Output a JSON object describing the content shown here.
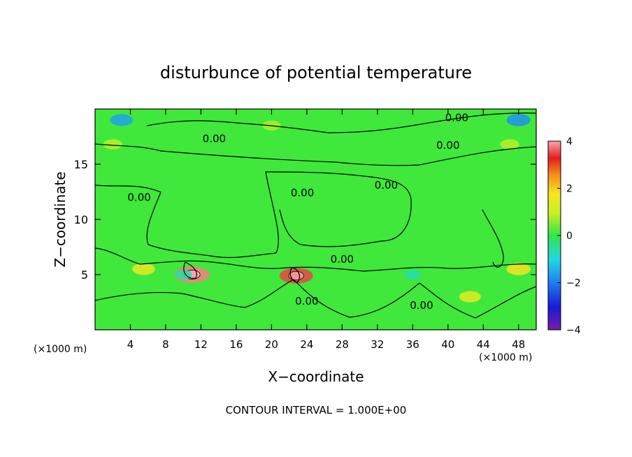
{
  "chart_data": {
    "type": "heatmap",
    "title": "disturbunce of potential temperature",
    "xlabel": "X−coordinate",
    "ylabel": "Z−coordinate",
    "x_unit": "(×1000 m)",
    "x_unit_right": "(×1000 m)",
    "footer": "CONTOUR INTERVAL = 1.000E+00",
    "xlim": [
      0,
      50
    ],
    "ylim": [
      0,
      20
    ],
    "x_ticks": [
      4,
      8,
      12,
      16,
      20,
      24,
      28,
      32,
      36,
      40,
      44,
      48
    ],
    "y_ticks": [
      5,
      10,
      15
    ],
    "colorbar": {
      "min": -4,
      "max": 4,
      "ticks": [
        -4,
        -2,
        0,
        2,
        4
      ]
    },
    "contour_labels": [
      {
        "text": "0.00",
        "x": 13.5,
        "y": 17.3
      },
      {
        "text": "0.00",
        "x": 41.0,
        "y": 19.2
      },
      {
        "text": "0.00",
        "x": 40.0,
        "y": 16.7
      },
      {
        "text": "0.00",
        "x": 33.0,
        "y": 13.1
      },
      {
        "text": "0.00",
        "x": 23.5,
        "y": 12.4
      },
      {
        "text": "0.00",
        "x": 5.0,
        "y": 12.0
      },
      {
        "text": "0.00",
        "x": 28.0,
        "y": 6.4
      },
      {
        "text": "0.00",
        "x": 24.0,
        "y": 2.6
      },
      {
        "text": "0.00",
        "x": 37.0,
        "y": 2.2
      }
    ],
    "features": [
      {
        "x": 11.0,
        "y": 5.0,
        "value": 3.8
      },
      {
        "x": 22.8,
        "y": 4.9,
        "value": 3.5
      },
      {
        "x": 48.0,
        "y": 5.5,
        "value": 1.8
      },
      {
        "x": 5.5,
        "y": 5.5,
        "value": 1.6
      },
      {
        "x": 42.5,
        "y": 3.0,
        "value": 1.4
      },
      {
        "x": 3.0,
        "y": 19.0,
        "value": -1.6
      },
      {
        "x": 48.0,
        "y": 19.0,
        "value": -1.8
      },
      {
        "x": 20.0,
        "y": 18.5,
        "value": 0.8
      },
      {
        "x": 2.0,
        "y": 16.8,
        "value": 0.9
      },
      {
        "x": 47.0,
        "y": 16.8,
        "value": 0.9
      },
      {
        "x": 10.0,
        "y": 5.0,
        "value": -0.6
      },
      {
        "x": 36.0,
        "y": 5.0,
        "value": -0.6
      }
    ],
    "grid": false
  }
}
